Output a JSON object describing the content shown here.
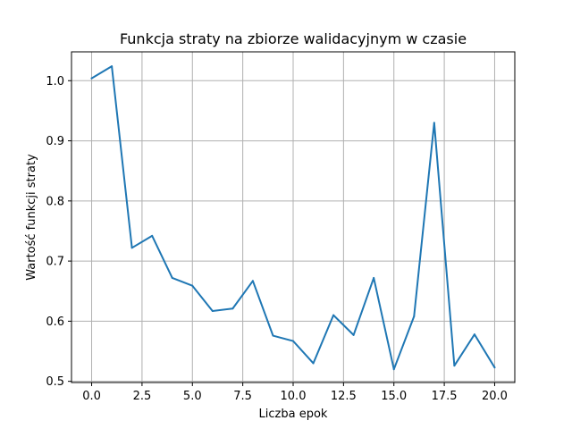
{
  "chart_data": {
    "type": "line",
    "title": "Funkcja straty na zbiorze walidacyjnym w czasie",
    "xlabel": "Liczba epok",
    "ylabel": "Wartość funkcji straty",
    "xlim": [
      -1,
      21
    ],
    "ylim": [
      0.498,
      1.048
    ],
    "grid": true,
    "x_ticks": [
      "0.0",
      "2.5",
      "5.0",
      "7.5",
      "10.0",
      "12.5",
      "15.0",
      "17.5",
      "20.0"
    ],
    "y_ticks": [
      "0.5",
      "0.6",
      "0.7",
      "0.8",
      "0.9",
      "1.0"
    ],
    "series": [
      {
        "color": "#1f77b4",
        "x": [
          0,
          1,
          2,
          3,
          4,
          5,
          6,
          7,
          8,
          9,
          10,
          11,
          12,
          13,
          14,
          15,
          16,
          17,
          18,
          19,
          20
        ],
        "values": [
          1.004,
          1.024,
          0.722,
          0.742,
          0.672,
          0.659,
          0.617,
          0.621,
          0.667,
          0.576,
          0.567,
          0.53,
          0.61,
          0.577,
          0.672,
          0.52,
          0.608,
          0.93,
          0.526,
          0.578,
          0.523
        ]
      }
    ]
  }
}
